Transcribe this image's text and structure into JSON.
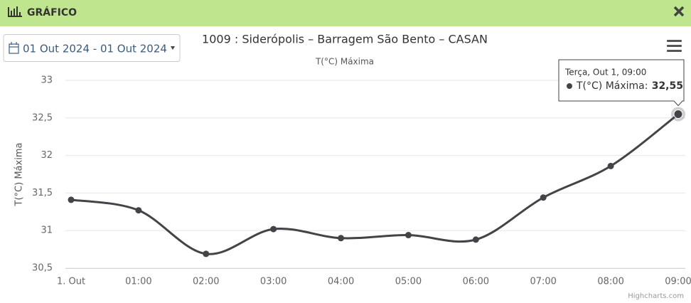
{
  "header": {
    "title": "GRÁFICO"
  },
  "date_range": "01 Out 2024 - 01 Out 2024",
  "chart_data": {
    "type": "line",
    "title": "1009 : Siderópolis – Barragem São Bento – CASAN",
    "subtitle": "T(°C) Máxima",
    "y_label": "T(°C) Máxima",
    "categories": [
      "1. Out",
      "01:00",
      "02:00",
      "03:00",
      "04:00",
      "05:00",
      "06:00",
      "07:00",
      "08:00",
      "09:00"
    ],
    "series": [
      {
        "name": "T(°C) Máxima",
        "color": "#434348",
        "values": [
          31.41,
          31.27,
          30.69,
          31.02,
          30.9,
          30.94,
          30.88,
          31.44,
          31.86,
          32.55
        ]
      }
    ],
    "ylim": [
      30.5,
      33
    ],
    "yticks": [
      {
        "value": 30.5,
        "label": "30,5"
      },
      31,
      {
        "value": 31.5,
        "label": "31,5"
      },
      32,
      {
        "value": 32.5,
        "label": "32,5"
      },
      33
    ],
    "grid": true,
    "tooltip": {
      "header": "Terça, Out 1, 09:00",
      "label": "T(°C) Máxima:",
      "value": "32,55"
    },
    "credits": "Highcharts.com"
  }
}
